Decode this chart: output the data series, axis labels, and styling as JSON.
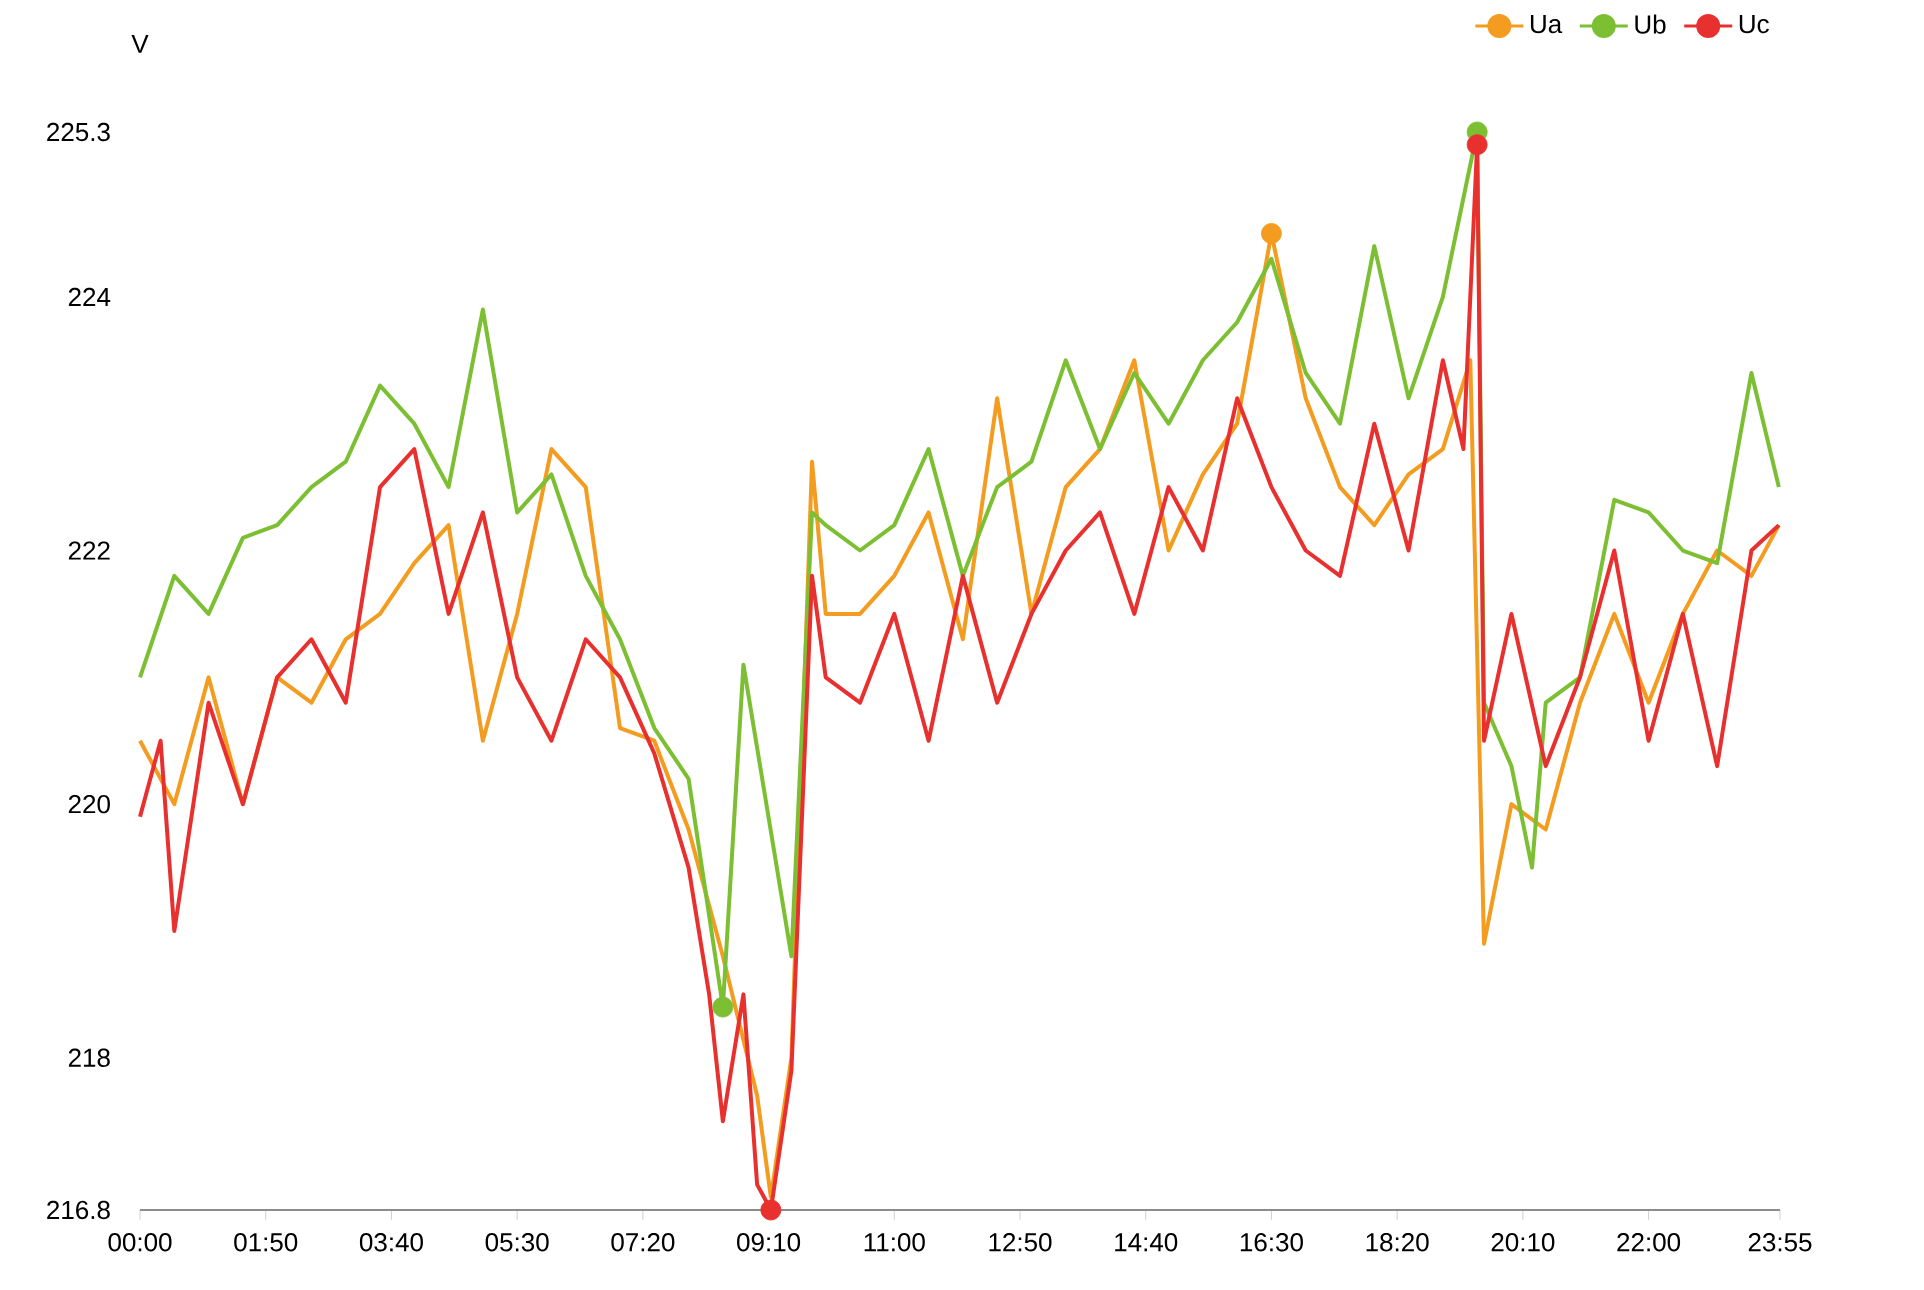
{
  "chart_data": {
    "type": "line",
    "ylabel": "V",
    "legend": "top right",
    "xlim": [
      0,
      23.9167
    ],
    "ylim": [
      216.8,
      225.3
    ],
    "xticks": [
      {
        "value": 0,
        "label": "00:00"
      },
      {
        "value": 1.8333,
        "label": "01:50"
      },
      {
        "value": 3.6667,
        "label": "03:40"
      },
      {
        "value": 5.5,
        "label": "05:30"
      },
      {
        "value": 7.3333,
        "label": "07:20"
      },
      {
        "value": 9.1667,
        "label": "09:10"
      },
      {
        "value": 11,
        "label": "11:00"
      },
      {
        "value": 12.8333,
        "label": "12:50"
      },
      {
        "value": 14.6667,
        "label": "14:40"
      },
      {
        "value": 16.5,
        "label": "16:30"
      },
      {
        "value": 18.3333,
        "label": "18:20"
      },
      {
        "value": 20.1667,
        "label": "20:10"
      },
      {
        "value": 22,
        "label": "22:00"
      },
      {
        "value": 23.9167,
        "label": "23:55"
      }
    ],
    "yticks": [
      216.8,
      218,
      220,
      222,
      224,
      225.3
    ],
    "series": [
      {
        "name": "Ua",
        "color": "#f39c1f",
        "x": [
          0,
          0.5,
          1,
          1.5,
          2,
          2.5,
          3,
          3.5,
          4,
          4.5,
          5,
          5.5,
          6,
          6.5,
          7,
          7.5,
          8,
          8.5,
          9,
          9.2,
          9.5,
          9.8,
          10,
          10.5,
          11,
          11.5,
          12,
          12.5,
          13,
          13.5,
          14,
          14.5,
          15,
          15.5,
          16,
          16.5,
          17,
          17.5,
          18,
          18.5,
          19,
          19.4,
          19.6,
          20,
          20.5,
          21,
          21.5,
          22,
          22.5,
          23,
          23.5,
          23.9
        ],
        "values": [
          220.5,
          220,
          221,
          220,
          221,
          220.8,
          221.3,
          221.5,
          221.9,
          222.2,
          220.5,
          221.5,
          222.8,
          222.5,
          220.6,
          220.5,
          219.8,
          218.8,
          217.7,
          216.9,
          218,
          222.7,
          221.5,
          221.5,
          221.8,
          222.3,
          221.3,
          223.2,
          221.5,
          222.5,
          222.8,
          223.5,
          222,
          222.6,
          223,
          224.5,
          223.2,
          222.5,
          222.2,
          222.6,
          222.8,
          223.5,
          218.9,
          220,
          219.8,
          220.8,
          221.5,
          220.8,
          221.5,
          222,
          221.8,
          222.2
        ]
      },
      {
        "name": "Ub",
        "color": "#7cbf33",
        "x": [
          0,
          0.5,
          1,
          1.5,
          2,
          2.5,
          3,
          3.5,
          4,
          4.5,
          5,
          5.5,
          6,
          6.5,
          7,
          7.5,
          8,
          8.5,
          8.8,
          9.5,
          9.8,
          10,
          10.5,
          11,
          11.5,
          12,
          12.5,
          13,
          13.5,
          14,
          14.5,
          15,
          15.5,
          16,
          16.5,
          17,
          17.5,
          18,
          18.5,
          19,
          19.5,
          19.6,
          20,
          20.3,
          20.5,
          21,
          21.5,
          22,
          22.5,
          23,
          23.5,
          23.9
        ],
        "values": [
          221,
          221.8,
          221.5,
          222.1,
          222.2,
          222.5,
          222.7,
          223.3,
          223,
          222.5,
          223.9,
          222.3,
          222.6,
          221.8,
          221.3,
          220.6,
          220.2,
          218.4,
          221.1,
          218.8,
          222.3,
          222.2,
          222,
          222.2,
          222.8,
          221.8,
          222.5,
          222.7,
          223.5,
          222.8,
          223.4,
          223,
          223.5,
          223.8,
          224.3,
          223.4,
          223,
          224.4,
          223.2,
          224,
          225.3,
          220.8,
          220.3,
          219.5,
          220.8,
          221,
          222.4,
          222.3,
          222,
          221.9,
          223.4,
          222.5
        ]
      },
      {
        "name": "Uc",
        "color": "#e8312f",
        "x": [
          0,
          0.3,
          0.5,
          1,
          1.5,
          2,
          2.5,
          3,
          3.5,
          4,
          4.5,
          5,
          5.5,
          6,
          6.5,
          7,
          7.5,
          8,
          8.3,
          8.5,
          8.8,
          9,
          9.2,
          9.5,
          9.8,
          10,
          10.5,
          11,
          11.5,
          12,
          12.5,
          13,
          13.5,
          14,
          14.5,
          15,
          15.5,
          16,
          16.5,
          17,
          17.5,
          18,
          18.5,
          19,
          19.3,
          19.5,
          19.6,
          20,
          20.5,
          21,
          21.5,
          22,
          22.5,
          23,
          23.5,
          23.9
        ],
        "values": [
          219.9,
          220.5,
          219,
          220.8,
          220,
          221,
          221.3,
          220.8,
          222.5,
          222.8,
          221.5,
          222.3,
          221,
          220.5,
          221.3,
          221,
          220.4,
          219.5,
          218.5,
          217.5,
          218.5,
          217,
          216.8,
          217.9,
          221.8,
          221,
          220.8,
          221.5,
          220.5,
          221.8,
          220.8,
          221.5,
          222,
          222.3,
          221.5,
          222.5,
          222,
          223.2,
          222.5,
          222,
          221.8,
          223,
          222,
          223.5,
          222.8,
          225.2,
          220.5,
          221.5,
          220.3,
          221,
          222,
          220.5,
          221.5,
          220.3,
          222,
          222.2
        ]
      },
      {
        "type": "scatter",
        "marker": "circle",
        "color": "#f39c1f",
        "x": [
          16.5
        ],
        "values": [
          224.5
        ]
      },
      {
        "type": "scatter",
        "marker": "circle",
        "color": "#7cbf33",
        "x": [
          8.5,
          19.5
        ],
        "values": [
          218.4,
          225.3
        ]
      },
      {
        "type": "scatter",
        "marker": "circle",
        "color": "#e8312f",
        "x": [
          9.2,
          19.5
        ],
        "values": [
          216.8,
          225.2
        ]
      }
    ]
  }
}
